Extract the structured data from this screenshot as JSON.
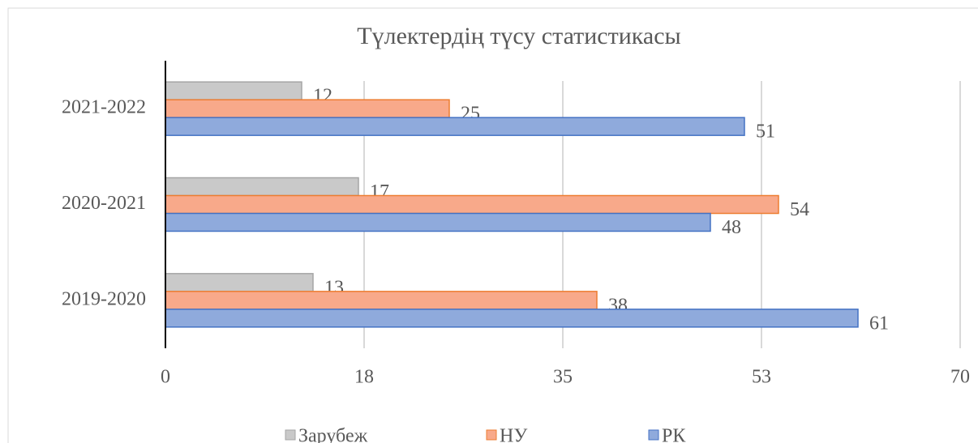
{
  "chart_data": {
    "type": "bar",
    "orientation": "horizontal",
    "title": "Түлектердің түсу статистикасы",
    "categories": [
      "2019-2020",
      "2020-2021",
      "2021-2022"
    ],
    "series": [
      {
        "name": "Зарубеж",
        "color": "#c9c9c9",
        "values": [
          13,
          17,
          12
        ]
      },
      {
        "name": "НУ",
        "color": "#f8a98a",
        "values": [
          38,
          54,
          25
        ]
      },
      {
        "name": "РК",
        "color": "#8faadc",
        "values": [
          61,
          48,
          51
        ]
      }
    ],
    "xlim": [
      0,
      70
    ],
    "xticks": [
      0,
      {
        "value": 17.5,
        "label": "18"
      },
      35,
      {
        "value": 52.5,
        "label": "53"
      },
      70
    ],
    "grid": true,
    "legend": "bottom"
  }
}
